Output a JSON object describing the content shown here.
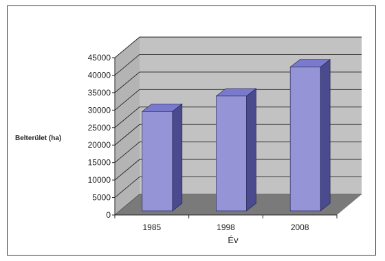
{
  "chart_data": {
    "type": "bar",
    "categories": [
      "1985",
      "1998",
      "2008"
    ],
    "values": [
      30800,
      35200,
      43500
    ],
    "xlabel": "Év",
    "ylabel": "Belterület (ha)",
    "ylim": [
      0,
      45000
    ],
    "yticks": [
      "0",
      "5000",
      "10000",
      "15000",
      "20000",
      "25000",
      "30000",
      "35000",
      "40000",
      "45000"
    ],
    "grid": true,
    "style": "3d-bar",
    "colors": {
      "bar_front": "#9494d6",
      "bar_top": "#7a7acc",
      "bar_side": "#4a4a8e",
      "wall": "#c2c2c2",
      "floor": "#7a7a7a",
      "gridline": "#222222"
    }
  }
}
